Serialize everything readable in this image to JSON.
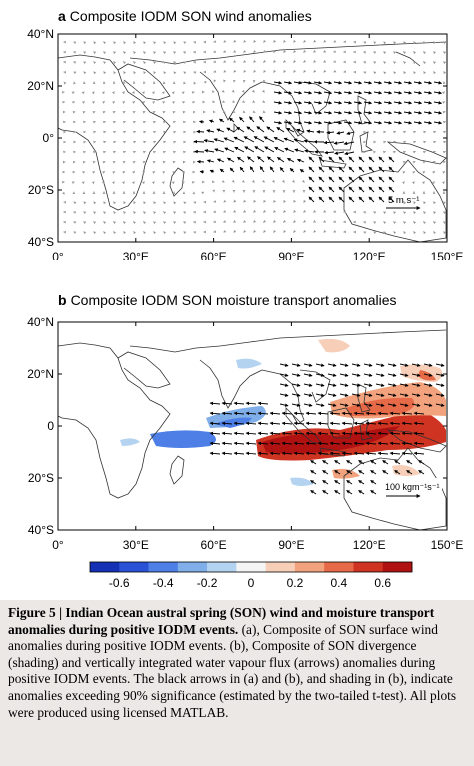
{
  "panels": [
    {
      "letter": "a",
      "title": "Composite IODM SON wind anomalies",
      "y_ticks": [
        "40°N",
        "20°N",
        "0°",
        "20°S",
        "40°S"
      ],
      "x_ticks": [
        "0°",
        "30°E",
        "60°E",
        "90°E",
        "120°E",
        "150°E"
      ],
      "reference_label": "5 m s⁻¹"
    },
    {
      "letter": "b",
      "title": "Composite IODM SON moisture transport anomalies",
      "y_ticks": [
        "40°N",
        "20°N",
        "0",
        "20°S",
        "40°S"
      ],
      "x_ticks": [
        "0°",
        "30°E",
        "60°E",
        "90°E",
        "120°E",
        "150°E"
      ],
      "reference_label": "100 kgm⁻¹s⁻¹"
    }
  ],
  "colorbar": {
    "ticks": [
      "-0.6",
      "-0.4",
      "-0.2",
      "0",
      "0.2",
      "0.4",
      "0.6"
    ],
    "colors": [
      "#1430b4",
      "#2a52d6",
      "#4d7fe6",
      "#7faee9",
      "#b4d3f0",
      "#f5f5f5",
      "#f7cfb8",
      "#f2a37d",
      "#e66a48",
      "#cf3322",
      "#b01212"
    ]
  },
  "caption": {
    "lead": "Figure 5 | Indian Ocean austral spring (SON) wind and moisture transport anomalies during positive IODM events.",
    "body": " (a), Composite of SON surface wind anomalies during positive IODM events. (b), Composite of SON divergence (shading) and vertically integrated water vapour flux (arrows) anomalies during positive IODM events. The black arrows in (a) and (b), and shading in (b), indicate anomalies exceeding 90% significance (estimated by the two-tailed t-test). All plots were produced using licensed MATLAB."
  }
}
